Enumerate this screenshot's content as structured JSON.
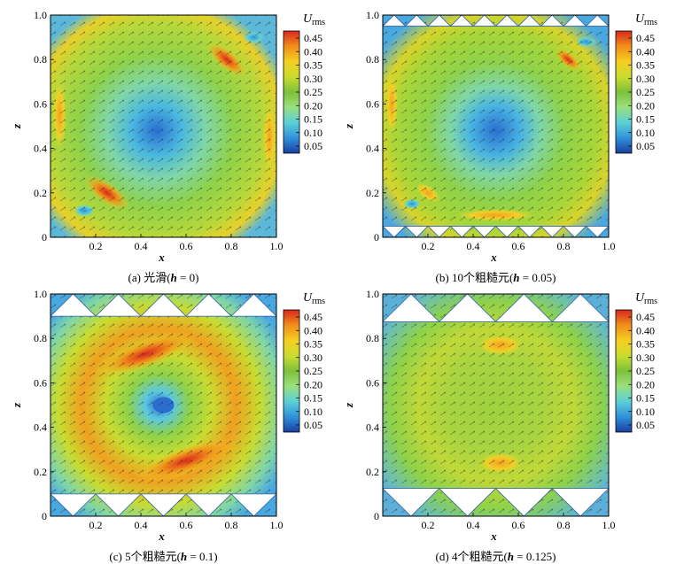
{
  "colorbar": {
    "title": "U",
    "subscript": "rms",
    "ticks": [
      "0.45",
      "0.40",
      "0.35",
      "0.30",
      "0.25",
      "0.20",
      "0.15",
      "0.10",
      "0.05"
    ],
    "colors": [
      "#1a3fa0",
      "#2f8fd8",
      "#5cd0d8",
      "#9be07a",
      "#7cc03a",
      "#c8dc30",
      "#f5d020",
      "#f08a1a",
      "#d8281e"
    ]
  },
  "axes": {
    "x_label": "x",
    "y_label": "z",
    "x_ticks": [
      "0.2",
      "0.4",
      "0.6",
      "0.8",
      "1.0"
    ],
    "y_ticks": [
      "0",
      "0.2",
      "0.4",
      "0.6",
      "0.8",
      "1.0"
    ]
  },
  "panels": [
    {
      "caption_prefix": "(a) 光滑(",
      "caption_param": "h",
      "caption_value": " = 0)",
      "roughness_count": 0,
      "roughness_h": 0
    },
    {
      "caption_prefix": "(b) 10个粗糙元(",
      "caption_param": "h",
      "caption_value": " = 0.05)",
      "roughness_count": 10,
      "roughness_h": 0.05
    },
    {
      "caption_prefix": "(c) 5个粗糙元(",
      "caption_param": "h",
      "caption_value": " = 0.1)",
      "roughness_count": 5,
      "roughness_h": 0.1
    },
    {
      "caption_prefix": "(d) 4个粗糙元(",
      "caption_param": "h",
      "caption_value": " = 0.125)",
      "roughness_count": 4,
      "roughness_h": 0.125
    }
  ],
  "chart_data": [
    {
      "type": "heatmap",
      "title": "(a) 光滑(h = 0)",
      "xlabel": "x",
      "ylabel": "z",
      "xlim": [
        0,
        1.0
      ],
      "ylim": [
        0,
        1.0
      ],
      "colorbar_label": "U_rms",
      "colorbar_range": [
        0.05,
        0.45
      ],
      "roughness_elements": 0,
      "roughness_height": 0
    },
    {
      "type": "heatmap",
      "title": "(b) 10个粗糙元(h = 0.05)",
      "xlabel": "x",
      "ylabel": "z",
      "xlim": [
        0,
        1.0
      ],
      "ylim": [
        0,
        1.0
      ],
      "colorbar_label": "U_rms",
      "colorbar_range": [
        0.05,
        0.45
      ],
      "roughness_elements": 10,
      "roughness_height": 0.05
    },
    {
      "type": "heatmap",
      "title": "(c) 5个粗糙元(h = 0.1)",
      "xlabel": "x",
      "ylabel": "z",
      "xlim": [
        0,
        1.0
      ],
      "ylim": [
        0,
        1.0
      ],
      "colorbar_label": "U_rms",
      "colorbar_range": [
        0.05,
        0.45
      ],
      "roughness_elements": 5,
      "roughness_height": 0.1
    },
    {
      "type": "heatmap",
      "title": "(d) 4个粗糙元(h = 0.125)",
      "xlabel": "x",
      "ylabel": "z",
      "xlim": [
        0,
        1.0
      ],
      "ylim": [
        0,
        1.0
      ],
      "colorbar_label": "U_rms",
      "colorbar_range": [
        0.05,
        0.45
      ],
      "roughness_elements": 4,
      "roughness_height": 0.125
    }
  ]
}
